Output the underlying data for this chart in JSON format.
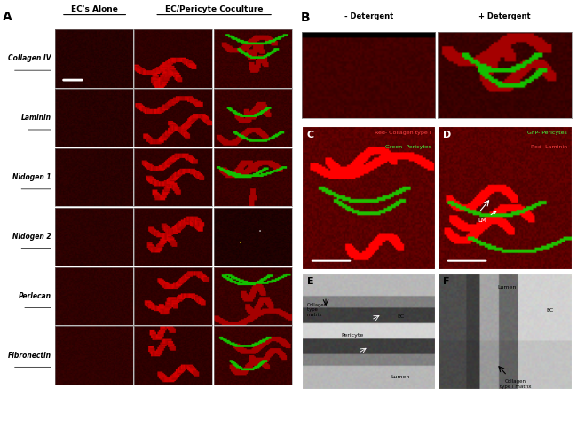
{
  "fig_width": 6.5,
  "fig_height": 4.74,
  "dpi": 100,
  "background_color": "#ffffff",
  "col_headers_B": [
    "- Detergent",
    "+ Detergent"
  ],
  "row_labels": [
    "Collagen IV",
    "Laminin",
    "Nidogen 1",
    "Nidogen 2",
    "Perlecan",
    "Fibronectin"
  ],
  "dark_red": "#3a0000",
  "medium_red": "#8b0000",
  "bright_red": "#cc2200",
  "green_color": "#00aa00",
  "label_color_red": "#ff3300",
  "label_color_green": "#00ff44",
  "em_bg": "#c8c8c8",
  "em_dark": "#404040",
  "text_color": "#000000",
  "white": "#ffffff"
}
